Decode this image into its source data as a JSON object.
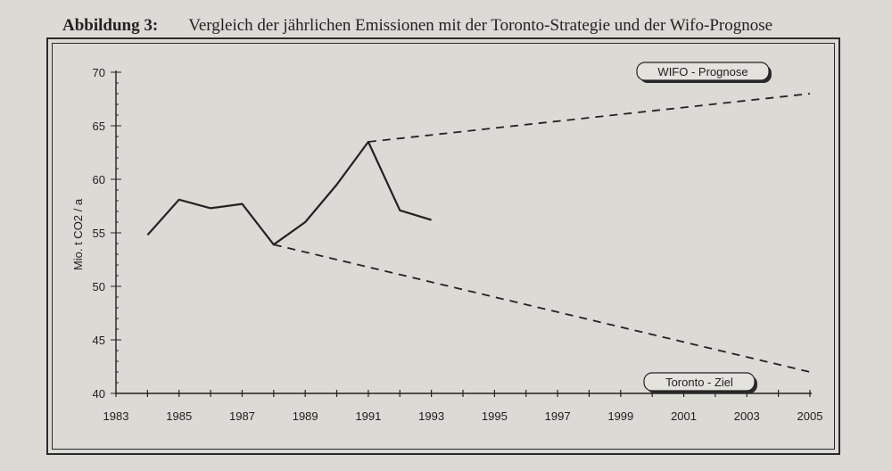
{
  "caption": {
    "label": "Abbildung 3:",
    "text": "Vergleich der jährlichen Emissionen mit der Toronto-Strategie und der Wifo-Prognose"
  },
  "chart_data": {
    "type": "line",
    "ylabel": "Mio. t CO2 / a",
    "xlabel": "",
    "xlim": [
      1983,
      2005
    ],
    "ylim": [
      40,
      70
    ],
    "x_ticks": [
      "1983",
      "1985",
      "1987",
      "1989",
      "1991",
      "1993",
      "1995",
      "1997",
      "1999",
      "2001",
      "2003",
      "2005"
    ],
    "y_ticks": [
      "40",
      "45",
      "50",
      "55",
      "60",
      "65",
      "70"
    ],
    "grid": false,
    "series": [
      {
        "style": "solid",
        "x": [
          1984,
          1985,
          1986,
          1987,
          1988,
          1989,
          1990,
          1991,
          1992,
          1993
        ],
        "y": [
          54.8,
          58.1,
          57.3,
          57.7,
          53.9,
          56.0,
          59.5,
          63.5,
          57.1,
          56.2
        ]
      },
      {
        "name": "WIFO - Prognose",
        "style": "dashed",
        "x": [
          1991,
          2005
        ],
        "y": [
          63.5,
          68.0
        ]
      },
      {
        "name": "Toronto - Ziel",
        "style": "dashed",
        "x": [
          1988,
          2005
        ],
        "y": [
          53.9,
          42.0
        ]
      }
    ]
  }
}
